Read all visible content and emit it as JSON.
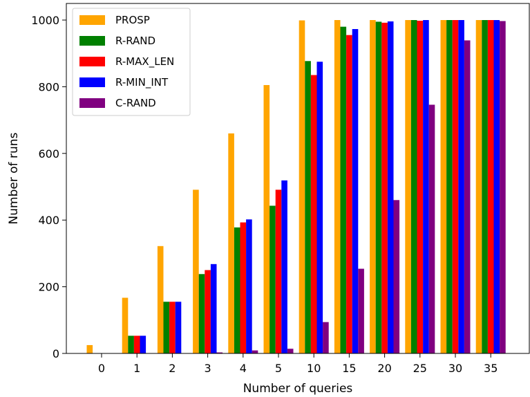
{
  "chart_data": {
    "type": "bar",
    "title": "",
    "xlabel": "Number of queries",
    "ylabel": "Number of runs",
    "categories": [
      "0",
      "1",
      "2",
      "3",
      "4",
      "5",
      "10",
      "15",
      "20",
      "25",
      "30",
      "35"
    ],
    "yticks": [
      "0",
      "200",
      "400",
      "600",
      "800",
      "1000"
    ],
    "ylim": [
      0,
      1030
    ],
    "grid": false,
    "legend_position": "top-left",
    "series": [
      {
        "name": "PROSP",
        "color": "#FFA500",
        "values": [
          25,
          167,
          322,
          491,
          660,
          805,
          999,
          1000,
          1000,
          1000,
          1000,
          1000
        ]
      },
      {
        "name": "R-RAND",
        "color": "#008000",
        "values": [
          0,
          53,
          155,
          238,
          378,
          443,
          877,
          980,
          995,
          1000,
          1000,
          1000
        ]
      },
      {
        "name": "R-MAX_LEN",
        "color": "#FF0000",
        "values": [
          0,
          53,
          155,
          250,
          393,
          491,
          835,
          955,
          992,
          998,
          1000,
          1000
        ]
      },
      {
        "name": "R-MIN_INT",
        "color": "#0000FF",
        "values": [
          0,
          53,
          155,
          268,
          402,
          519,
          875,
          973,
          996,
          1000,
          1000,
          1000
        ]
      },
      {
        "name": "C-RAND",
        "color": "#800080",
        "values": [
          0,
          0,
          0,
          3,
          9,
          14,
          94,
          254,
          460,
          746,
          939,
          997
        ]
      }
    ]
  }
}
